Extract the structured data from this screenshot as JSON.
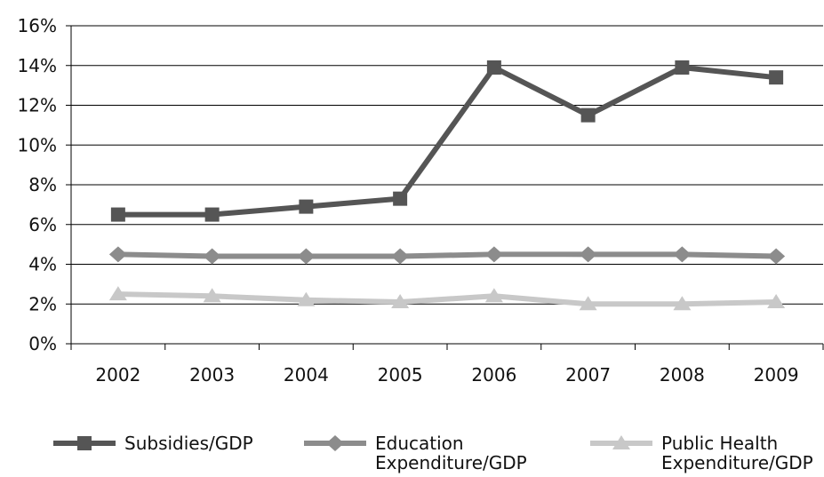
{
  "chart_data": {
    "type": "line",
    "title": "",
    "xlabel": "",
    "ylabel": "",
    "categories": [
      "2002",
      "2003",
      "2004",
      "2005",
      "2006",
      "2007",
      "2008",
      "2009"
    ],
    "ylim": [
      0,
      16
    ],
    "yticks": [
      0,
      2,
      4,
      6,
      8,
      10,
      12,
      14,
      16
    ],
    "ytick_labels": [
      "0%",
      "2%",
      "4%",
      "6%",
      "8%",
      "10%",
      "12%",
      "14%",
      "16%"
    ],
    "grid": "horizontal",
    "legend_position": "bottom",
    "series": [
      {
        "name": "Subsidies/GDP",
        "marker": "square",
        "color": "#555555",
        "values": [
          6.5,
          6.5,
          6.9,
          7.3,
          13.9,
          11.5,
          13.9,
          13.4
        ]
      },
      {
        "name": "Education Expenditure/GDP",
        "marker": "diamond",
        "color": "#8c8c8c",
        "values": [
          4.5,
          4.4,
          4.4,
          4.4,
          4.5,
          4.5,
          4.5,
          4.4
        ]
      },
      {
        "name": "Public Health Expenditure/GDP",
        "marker": "triangle",
        "color": "#c8c8c8",
        "values": [
          2.5,
          2.4,
          2.2,
          2.1,
          2.4,
          2.0,
          2.0,
          2.1
        ]
      }
    ]
  }
}
